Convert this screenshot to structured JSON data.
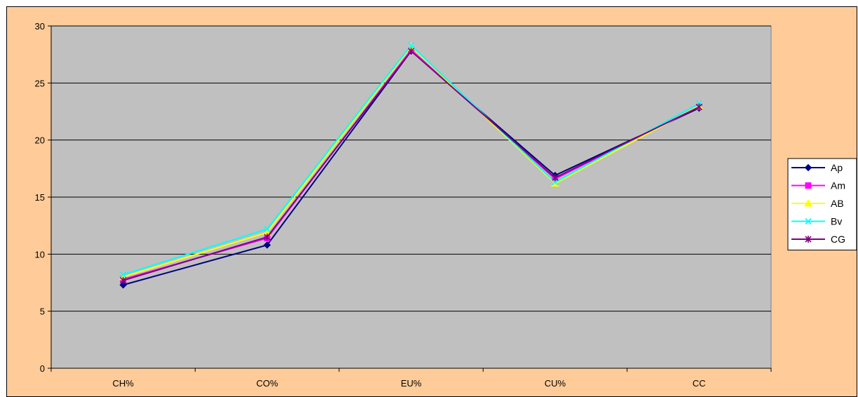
{
  "chart_data": {
    "type": "line",
    "categories": [
      "CH%",
      "CO%",
      "EU%",
      "CU%",
      "CC"
    ],
    "ylim": [
      0,
      30
    ],
    "yticks": [
      0,
      5,
      10,
      15,
      20,
      25,
      30
    ],
    "grid": true,
    "legend_position": "right",
    "series": [
      {
        "name": "Ap",
        "values": [
          7.3,
          10.8,
          27.8,
          16.9,
          22.8
        ],
        "color": "#000080",
        "marker": "diamond"
      },
      {
        "name": "Am",
        "values": [
          7.8,
          11.4,
          27.9,
          16.6,
          22.9
        ],
        "color": "#ff00ff",
        "marker": "square"
      },
      {
        "name": "AB",
        "values": [
          8.0,
          11.9,
          28.2,
          16.2,
          23.0
        ],
        "color": "#ffff00",
        "marker": "triangle"
      },
      {
        "name": "Bv",
        "values": [
          8.2,
          12.2,
          28.3,
          16.3,
          23.2
        ],
        "color": "#00ffff",
        "marker": "x"
      },
      {
        "name": "CG",
        "values": [
          7.7,
          11.5,
          27.8,
          16.7,
          22.9
        ],
        "color": "#800080",
        "marker": "star"
      }
    ],
    "plot_background": "#c0c0c0",
    "chart_background": "#ffcc99"
  }
}
